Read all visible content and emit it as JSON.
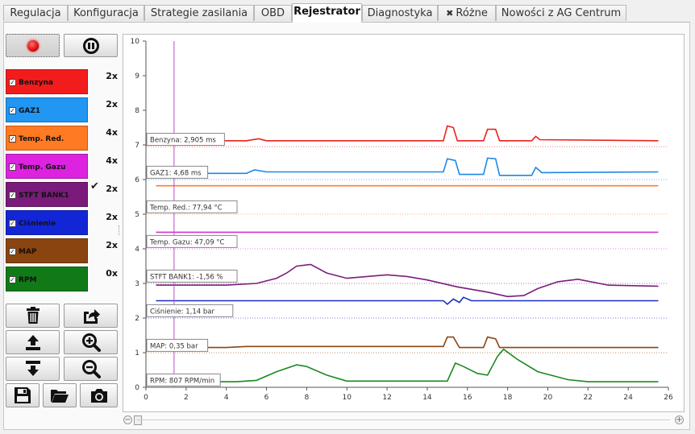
{
  "tabs": [
    {
      "label": "Regulacja",
      "active": false
    },
    {
      "label": "Konfiguracja",
      "active": false
    },
    {
      "label": "Strategie zasilania",
      "active": false
    },
    {
      "label": "OBD",
      "active": false
    },
    {
      "label": "Rejestrator",
      "active": true
    },
    {
      "label": "Diagnostyka",
      "active": false
    },
    {
      "label": "Różne",
      "active": false,
      "icon": "tools-icon"
    },
    {
      "label": "Nowości z AG Centrum",
      "active": false
    }
  ],
  "recorder": {
    "record_icon": "record-icon",
    "pause_icon": "pause-icon"
  },
  "channels": [
    {
      "label": "Benzyna",
      "scale": "2x",
      "color": "#f21c1c",
      "line": "#e8231e",
      "checked": true,
      "selected": false
    },
    {
      "label": "GAZ1",
      "scale": "2x",
      "color": "#2196f3",
      "line": "#1e88e5",
      "checked": true,
      "selected": false
    },
    {
      "label": "Temp. Red.",
      "scale": "4x",
      "color": "#ff7a22",
      "line": "#ff7d2a",
      "checked": true,
      "selected": false
    },
    {
      "label": "Temp. Gazu",
      "scale": "4x",
      "color": "#dd22e0",
      "line": "#d52fd8",
      "checked": true,
      "selected": false
    },
    {
      "label": "STFT BANK1",
      "scale": "2x",
      "color": "#7a1a7a",
      "line": "#7b1c7b",
      "checked": true,
      "selected": true
    },
    {
      "label": "Ciśnienie",
      "scale": "2x",
      "color": "#1326d6",
      "line": "#1a2fc2",
      "checked": true,
      "selected": false
    },
    {
      "label": "MAP",
      "scale": "2x",
      "color": "#8a4410",
      "line": "#8b4513",
      "checked": true,
      "selected": false
    },
    {
      "label": "RPM",
      "scale": "0x",
      "color": "#117a17",
      "line": "#1b8a1f",
      "checked": true,
      "selected": false
    }
  ],
  "selected_mark": "✔",
  "toolbar_icons": [
    "trash-icon",
    "export-icon",
    "upload-icon",
    "zoom-in-icon",
    "download-icon",
    "zoom-out-icon",
    "save-icon",
    "folder-icon",
    "camera-icon"
  ],
  "chart_data": {
    "type": "line",
    "x_range": [
      0,
      26
    ],
    "y_range": [
      0,
      10
    ],
    "x_ticks": [
      "0",
      "2",
      "4",
      "6",
      "8",
      "10",
      "12",
      "14",
      "16",
      "18",
      "20",
      "22",
      "24",
      "26"
    ],
    "y_ticks": [
      "0",
      "1",
      "2",
      "3",
      "4",
      "5",
      "6",
      "7",
      "8",
      "9",
      "10"
    ],
    "cursor_x": 1.4,
    "readouts": [
      {
        "text": "Benzyna: 2,905 ms",
        "y": 7.15
      },
      {
        "text": "GAZ1: 4,68 ms",
        "y": 6.2
      },
      {
        "text": "Temp. Red.: 77,94 °C",
        "y": 5.2
      },
      {
        "text": "Temp. Gazu: 47,09 °C",
        "y": 4.2
      },
      {
        "text": "STFT BANK1: -1,56  %",
        "y": 3.2
      },
      {
        "text": "Ciśnienie: 1,14 bar",
        "y": 2.2
      },
      {
        "text": "MAP: 0,35 bar",
        "y": 1.2
      },
      {
        "text": "RPM: 807 RPM/min",
        "y": 0.2
      }
    ],
    "series": [
      {
        "name": "Benzyna",
        "points": [
          [
            0.5,
            7.12
          ],
          [
            5,
            7.12
          ],
          [
            5.6,
            7.18
          ],
          [
            6,
            7.12
          ],
          [
            14.8,
            7.12
          ],
          [
            15,
            7.55
          ],
          [
            15.3,
            7.5
          ],
          [
            15.5,
            7.12
          ],
          [
            16.8,
            7.12
          ],
          [
            17,
            7.45
          ],
          [
            17.4,
            7.45
          ],
          [
            17.6,
            7.12
          ],
          [
            19.2,
            7.12
          ],
          [
            19.4,
            7.25
          ],
          [
            19.6,
            7.15
          ],
          [
            25.5,
            7.12
          ]
        ]
      },
      {
        "name": "GAZ1",
        "points": [
          [
            0.5,
            6.18
          ],
          [
            5,
            6.18
          ],
          [
            5.4,
            6.28
          ],
          [
            6,
            6.22
          ],
          [
            14.8,
            6.22
          ],
          [
            15,
            6.6
          ],
          [
            15.4,
            6.55
          ],
          [
            15.6,
            6.15
          ],
          [
            16.8,
            6.15
          ],
          [
            17,
            6.62
          ],
          [
            17.4,
            6.6
          ],
          [
            17.6,
            6.12
          ],
          [
            19.2,
            6.12
          ],
          [
            19.4,
            6.35
          ],
          [
            19.7,
            6.2
          ],
          [
            25.5,
            6.22
          ]
        ]
      },
      {
        "name": "Temp. Red.",
        "points": [
          [
            0.5,
            5.82
          ],
          [
            25.5,
            5.82
          ]
        ]
      },
      {
        "name": "Temp. Gazu",
        "points": [
          [
            0.5,
            4.48
          ],
          [
            25.5,
            4.48
          ]
        ]
      },
      {
        "name": "STFT BANK1",
        "points": [
          [
            0.5,
            2.95
          ],
          [
            4,
            2.95
          ],
          [
            5.5,
            3.0
          ],
          [
            6.5,
            3.15
          ],
          [
            7,
            3.3
          ],
          [
            7.5,
            3.5
          ],
          [
            8.2,
            3.55
          ],
          [
            9,
            3.3
          ],
          [
            10,
            3.15
          ],
          [
            11,
            3.2
          ],
          [
            12,
            3.25
          ],
          [
            13,
            3.2
          ],
          [
            14,
            3.1
          ],
          [
            15.5,
            2.9
          ],
          [
            17,
            2.75
          ],
          [
            18,
            2.62
          ],
          [
            18.8,
            2.65
          ],
          [
            19.5,
            2.85
          ],
          [
            20.5,
            3.05
          ],
          [
            21.5,
            3.12
          ],
          [
            23,
            2.95
          ],
          [
            25.5,
            2.92
          ]
        ]
      },
      {
        "name": "Ciśnienie",
        "points": [
          [
            0.5,
            2.5
          ],
          [
            14.8,
            2.5
          ],
          [
            15,
            2.4
          ],
          [
            15.3,
            2.55
          ],
          [
            15.6,
            2.45
          ],
          [
            15.8,
            2.6
          ],
          [
            16.2,
            2.5
          ],
          [
            25.5,
            2.5
          ]
        ]
      },
      {
        "name": "MAP",
        "points": [
          [
            0.5,
            1.15
          ],
          [
            4,
            1.15
          ],
          [
            5,
            1.18
          ],
          [
            14.8,
            1.18
          ],
          [
            15,
            1.45
          ],
          [
            15.3,
            1.45
          ],
          [
            15.6,
            1.15
          ],
          [
            16.8,
            1.15
          ],
          [
            17,
            1.45
          ],
          [
            17.4,
            1.4
          ],
          [
            17.6,
            1.15
          ],
          [
            25.5,
            1.15
          ]
        ]
      },
      {
        "name": "RPM",
        "points": [
          [
            0.5,
            0.16
          ],
          [
            4.5,
            0.16
          ],
          [
            5.5,
            0.2
          ],
          [
            6.5,
            0.45
          ],
          [
            7.5,
            0.65
          ],
          [
            8,
            0.6
          ],
          [
            9,
            0.35
          ],
          [
            10,
            0.18
          ],
          [
            15,
            0.18
          ],
          [
            15.4,
            0.7
          ],
          [
            15.8,
            0.6
          ],
          [
            16.5,
            0.4
          ],
          [
            17,
            0.35
          ],
          [
            17.5,
            0.9
          ],
          [
            17.8,
            1.1
          ],
          [
            18.5,
            0.8
          ],
          [
            19.5,
            0.45
          ],
          [
            21,
            0.22
          ],
          [
            22,
            0.16
          ],
          [
            25.5,
            0.16
          ]
        ]
      }
    ]
  }
}
